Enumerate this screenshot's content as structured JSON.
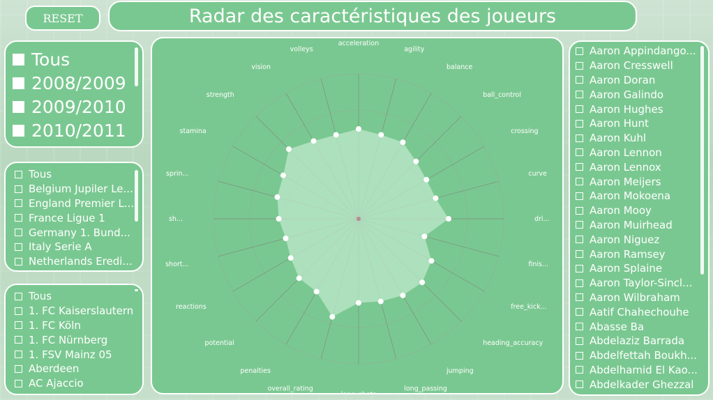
{
  "header": {
    "reset_label": "RESET",
    "title": "Radar des caractéristiques des joueurs"
  },
  "seasons": [
    "Tous",
    "2008/2009",
    "2009/2010",
    "2010/2011"
  ],
  "leagues": [
    "Tous",
    "Belgium Jupiler Le...",
    "England Premier L...",
    "France Ligue 1",
    "Germany 1. Bund...",
    "Italy Serie A",
    "Netherlands Eredi..."
  ],
  "teams": [
    "Tous",
    "1. FC Kaiserslautern",
    "1. FC Köln",
    "1. FC Nürnberg",
    "1. FSV Mainz 05",
    "Aberdeen",
    "AC Ajaccio"
  ],
  "players": [
    "Aaron Appindango...",
    "Aaron Cresswell",
    "Aaron Doran",
    "Aaron Galindo",
    "Aaron Hughes",
    "Aaron Hunt",
    "Aaron Kuhl",
    "Aaron Lennon",
    "Aaron Lennox",
    "Aaron Meijers",
    "Aaron Mokoena",
    "Aaron Mooy",
    "Aaron Muirhead",
    "Aaron Niguez",
    "Aaron Ramsey",
    "Aaron Splaine",
    "Aaron Taylor-Sincl...",
    "Aaron Wilbraham",
    "Aatif Chahechouhe",
    "Abasse Ba",
    "Abdelaziz Barrada",
    "Abdelfettah Boukh...",
    "Abdelhamid El Kao...",
    "Abdelkader Ghezzal"
  ],
  "chart_data": {
    "type": "radar",
    "title": "",
    "axes": [
      "acceleration",
      "agility",
      "balance",
      "ball_control",
      "crossing",
      "curve",
      "dri...",
      "finis...",
      "free_kick...",
      "heading_accuracy",
      "jumping",
      "long_passing",
      "long_shots",
      "overall_rating",
      "penalties",
      "potential",
      "reactions",
      "short...",
      "sh...",
      "sprin...",
      "stamina",
      "strength",
      "vision",
      "volleys"
    ],
    "values": [
      0.62,
      0.6,
      0.61,
      0.56,
      0.54,
      0.55,
      0.62,
      0.47,
      0.58,
      0.62,
      0.61,
      0.59,
      0.58,
      0.7,
      0.58,
      0.58,
      0.54,
      0.52,
      0.55,
      0.58,
      0.6,
      0.68,
      0.62,
      0.6
    ],
    "range": [
      0,
      1
    ],
    "grid_rings": 4,
    "colors": {
      "fill": "#bfe8cb",
      "point": "#ffffff",
      "spoke": "#7d8a80",
      "ring": "#8fae95"
    }
  }
}
